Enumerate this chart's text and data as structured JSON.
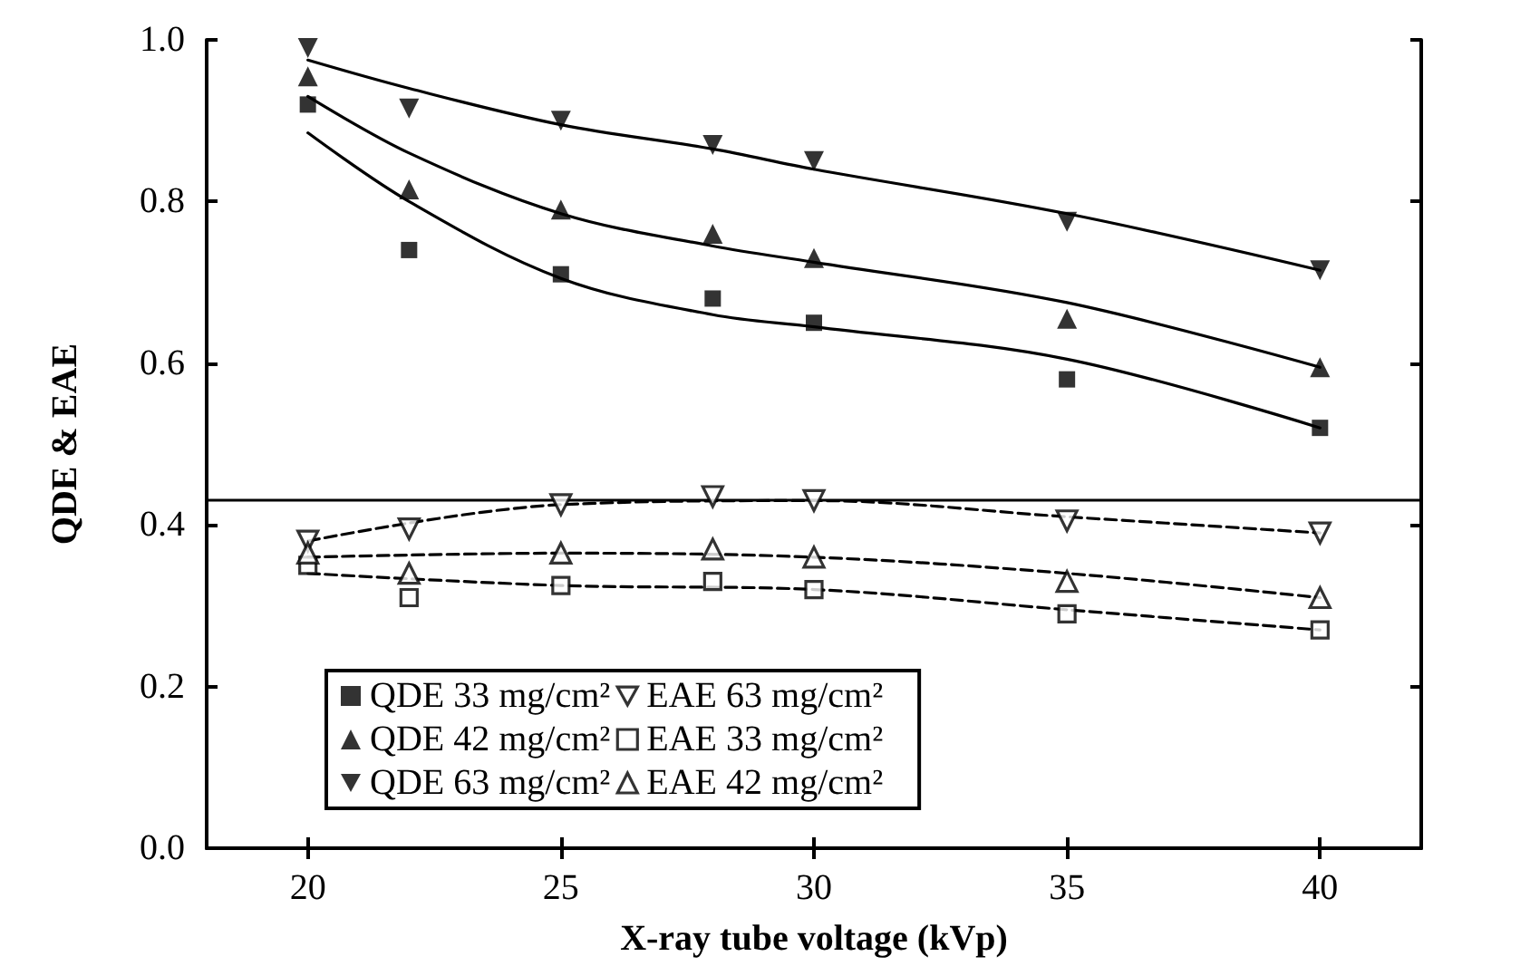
{
  "chart_data": {
    "type": "scatter",
    "xlabel": "X-ray tube voltage (kVp)",
    "ylabel": "QDE & EAE",
    "x": [
      20,
      22,
      25,
      28,
      30,
      35,
      40
    ],
    "xlim": [
      18,
      42
    ],
    "xticks": [
      20,
      25,
      30,
      35,
      40
    ],
    "ylim": [
      0,
      1
    ],
    "yticks": [
      {
        "value": 0,
        "label": "0.0"
      },
      0.2,
      0.4,
      0.6,
      0.8,
      {
        "value": 1,
        "label": "1.0"
      }
    ],
    "grid": false,
    "legend": "bottom",
    "ref_lines": [
      {
        "axis": "y",
        "value": 0.43,
        "color": "#000000"
      }
    ],
    "series": [
      {
        "name": "QDE 33 mg/cm²",
        "color": "#000000",
        "marker": "square",
        "values": [
          0.92,
          0.74,
          0.71,
          0.68,
          0.65,
          0.58,
          0.52
        ]
      },
      {
        "name": "QDE 42 mg/cm²",
        "color": "#000000",
        "marker": "triangle",
        "values": [
          0.955,
          0.815,
          0.79,
          0.76,
          0.73,
          0.655,
          0.595
        ]
      },
      {
        "name": "QDE 63 mg/cm²",
        "color": "#000000",
        "marker": "triangle-down",
        "values": [
          0.99,
          0.915,
          0.9,
          0.87,
          0.85,
          0.775,
          0.715
        ]
      },
      {
        "name": "EAE 63 mg/cm²",
        "color": "#000000",
        "marker": "triangle-down-open",
        "values": [
          0.38,
          0.395,
          0.425,
          0.435,
          0.43,
          0.405,
          0.39
        ]
      },
      {
        "name": "EAE 33 mg/cm²",
        "color": "#000000",
        "marker": "square-open",
        "values": [
          0.35,
          0.31,
          0.325,
          0.33,
          0.32,
          0.29,
          0.27
        ]
      },
      {
        "name": "EAE 42 mg/cm²",
        "color": "#000000",
        "marker": "triangle-open",
        "values": [
          0.365,
          0.34,
          0.365,
          0.37,
          0.36,
          0.33,
          0.31
        ]
      },
      {
        "type": "line",
        "color": "#000000",
        "marker": "none",
        "line_style": "solid",
        "x": [
          20,
          22,
          25,
          28,
          30,
          35,
          40
        ],
        "values": [
          0.885,
          0.8,
          0.705,
          0.66,
          0.645,
          0.605,
          0.52
        ]
      },
      {
        "type": "line",
        "color": "#000000",
        "marker": "none",
        "line_style": "solid",
        "x": [
          20,
          22,
          25,
          28,
          30,
          35,
          40
        ],
        "values": [
          0.93,
          0.86,
          0.785,
          0.745,
          0.725,
          0.675,
          0.595
        ]
      },
      {
        "type": "line",
        "color": "#000000",
        "marker": "none",
        "line_style": "solid",
        "x": [
          20,
          22,
          25,
          28,
          30,
          35,
          40
        ],
        "values": [
          0.975,
          0.94,
          0.895,
          0.865,
          0.84,
          0.785,
          0.715
        ]
      },
      {
        "type": "line",
        "color": "#000000",
        "marker": "none",
        "line_style": "dashed",
        "x": [
          20,
          25,
          30,
          35,
          40
        ],
        "values": [
          0.38,
          0.425,
          0.43,
          0.41,
          0.39
        ]
      },
      {
        "type": "line",
        "color": "#000000",
        "marker": "none",
        "line_style": "dashed",
        "x": [
          20,
          25,
          30,
          35,
          40
        ],
        "values": [
          0.34,
          0.325,
          0.32,
          0.295,
          0.27
        ]
      },
      {
        "type": "line",
        "color": "#000000",
        "marker": "none",
        "line_style": "dashed",
        "x": [
          20,
          25,
          30,
          35,
          40
        ],
        "values": [
          0.36,
          0.365,
          0.36,
          0.34,
          0.31
        ]
      }
    ]
  }
}
